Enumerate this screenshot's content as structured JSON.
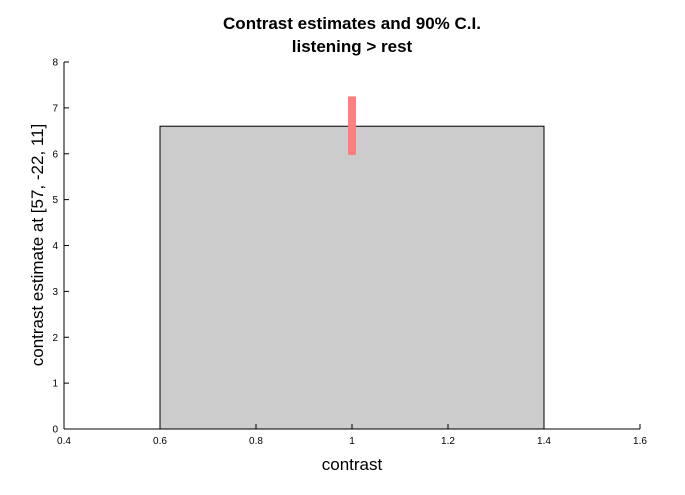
{
  "chart_data": {
    "type": "bar",
    "title": "Contrast estimates and 90% C.I.",
    "subtitle": "listening > rest",
    "xlabel": "contrast",
    "ylabel": "contrast estimate at [57, -22, 11]",
    "xlim": [
      0.4,
      1.6
    ],
    "ylim": [
      0,
      8
    ],
    "xticks": [
      "0.4",
      "0.6",
      "0.8",
      "1",
      "1.2",
      "1.4",
      "1.6"
    ],
    "yticks": [
      "0",
      "1",
      "2",
      "3",
      "4",
      "5",
      "6",
      "7",
      "8"
    ],
    "grid": false,
    "bars": [
      {
        "x": 1.0,
        "x_start": 0.6,
        "x_end": 1.4,
        "value": 6.6,
        "ci": [
          5.97,
          7.25
        ]
      }
    ],
    "colors": {
      "bar_fill": "#cccccc",
      "bar_edge": "#000000",
      "ci": "#ff7f7f"
    }
  }
}
